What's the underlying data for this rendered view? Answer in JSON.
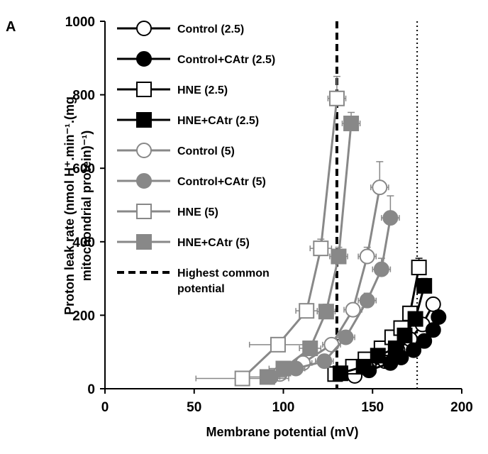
{
  "chart_data": {
    "type": "line",
    "panel_label": "A",
    "title": "",
    "xlabel": "Membrane potential (mV)",
    "ylabel_line1": "Proton leak rate (nmol H⁺.min⁻¹.(mg",
    "ylabel_line2": "mitochondrial protein)⁻¹)",
    "xlim": [
      0,
      200
    ],
    "ylim": [
      0,
      1000
    ],
    "xticks": [
      "0",
      "50",
      "100",
      "150",
      "200"
    ],
    "yticks": [
      "0",
      "200",
      "400",
      "600",
      "800",
      "1000"
    ],
    "reference_lines": [
      {
        "name": "Highest common potential",
        "x": 130,
        "style": "dashed",
        "legend_line1": "Highest common",
        "legend_line2": "potential"
      },
      {
        "name": "",
        "x": 175,
        "style": "dotted"
      }
    ],
    "series": [
      {
        "name": "Control (2.5)",
        "line_color": "#000000",
        "marker": "circle",
        "fill": "#ffffff",
        "x": [
          140,
          148,
          157,
          164,
          171,
          178,
          184
        ],
        "y": [
          35,
          60,
          75,
          105,
          135,
          175,
          230
        ],
        "xerr": [
          3,
          3,
          3,
          3,
          3,
          3,
          3
        ],
        "yerr": [
          5,
          5,
          5,
          8,
          8,
          10,
          15
        ]
      },
      {
        "name": "Control+CAtr (2.5)",
        "line_color": "#000000",
        "marker": "circle",
        "fill": "#000000",
        "x": [
          148,
          160,
          166,
          173,
          179,
          184,
          187
        ],
        "y": [
          50,
          70,
          85,
          105,
          130,
          160,
          195
        ],
        "xerr": [
          3,
          3,
          3,
          3,
          3,
          3,
          3
        ],
        "yerr": [
          5,
          5,
          5,
          8,
          8,
          10,
          12
        ]
      },
      {
        "name": "HNE (2.5)",
        "line_color": "#000000",
        "marker": "square",
        "fill": "#ffffff",
        "x": [
          129,
          139,
          146,
          155,
          161,
          166,
          171,
          176
        ],
        "y": [
          40,
          60,
          80,
          110,
          140,
          165,
          205,
          330
        ],
        "xerr": [
          3,
          3,
          3,
          3,
          3,
          3,
          3,
          3
        ],
        "yerr": [
          5,
          5,
          5,
          8,
          8,
          10,
          15,
          25
        ]
      },
      {
        "name": "HNE+CAtr (2.5)",
        "line_color": "#000000",
        "marker": "square",
        "fill": "#000000",
        "x": [
          132,
          145,
          153,
          163,
          168,
          174,
          179
        ],
        "y": [
          42,
          60,
          90,
          110,
          145,
          190,
          280
        ],
        "xerr": [
          3,
          3,
          3,
          3,
          3,
          3,
          3
        ],
        "yerr": [
          5,
          5,
          5,
          8,
          8,
          10,
          20
        ]
      },
      {
        "name": "Control (5)",
        "line_color": "#888888",
        "marker": "circle",
        "fill": "#ffffff",
        "x": [
          98,
          111,
          127,
          139,
          147,
          154
        ],
        "y": [
          40,
          70,
          120,
          215,
          360,
          548
        ],
        "xerr": [
          5,
          5,
          5,
          5,
          5,
          5
        ],
        "yerr": [
          5,
          8,
          10,
          15,
          25,
          70
        ]
      },
      {
        "name": "Control+CAtr (5)",
        "line_color": "#888888",
        "marker": "circle",
        "fill": "#888888",
        "x": [
          93,
          107,
          123,
          135,
          147,
          155,
          160
        ],
        "y": [
          32,
          55,
          75,
          140,
          240,
          325,
          465
        ],
        "xerr": [
          5,
          5,
          5,
          5,
          5,
          5,
          5
        ],
        "yerr": [
          5,
          8,
          10,
          15,
          20,
          30,
          60
        ]
      },
      {
        "name": "HNE (5)",
        "line_color": "#888888",
        "marker": "square",
        "fill": "#ffffff",
        "x": [
          77,
          97,
          113,
          121,
          130
        ],
        "y": [
          28,
          120,
          212,
          382,
          790
        ],
        "xerr": [
          26,
          16,
          6,
          6,
          5
        ],
        "yerr": [
          5,
          10,
          15,
          25,
          60
        ]
      },
      {
        "name": "HNE+CAtr (5)",
        "line_color": "#888888",
        "marker": "square",
        "fill": "#888888",
        "x": [
          91,
          100,
          115,
          124,
          131,
          138
        ],
        "y": [
          32,
          55,
          110,
          210,
          360,
          722
        ],
        "xerr": [
          10,
          8,
          6,
          5,
          5,
          5
        ],
        "yerr": [
          5,
          8,
          15,
          20,
          25,
          30
        ]
      }
    ]
  }
}
